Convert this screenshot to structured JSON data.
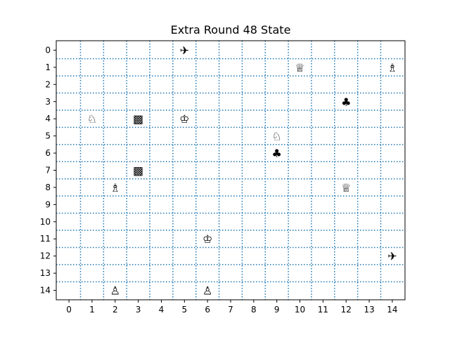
{
  "title": "Extra Round 48 State",
  "board": {
    "cols": 15,
    "rows": 15,
    "x_ticks": [
      "0",
      "1",
      "2",
      "3",
      "4",
      "5",
      "6",
      "7",
      "8",
      "9",
      "10",
      "11",
      "12",
      "13",
      "14"
    ],
    "y_ticks": [
      "0",
      "1",
      "2",
      "3",
      "4",
      "5",
      "6",
      "7",
      "8",
      "9",
      "10",
      "11",
      "12",
      "13",
      "14"
    ],
    "grid_style": "dotted",
    "grid_color": "#1f77b4"
  },
  "pieces": [
    {
      "col": 5,
      "row": 0,
      "glyph": "✈",
      "name": "airplane-icon"
    },
    {
      "col": 10,
      "row": 1,
      "glyph": "♕",
      "name": "white-queen-icon"
    },
    {
      "col": 14,
      "row": 1,
      "glyph": "♗",
      "name": "white-bishop-icon"
    },
    {
      "col": 12,
      "row": 3,
      "glyph": "♣",
      "name": "club-icon"
    },
    {
      "col": 1,
      "row": 4,
      "glyph": "♘",
      "name": "white-knight-icon"
    },
    {
      "col": 3,
      "row": 4,
      "glyph": "▩",
      "name": "checkered-block-icon"
    },
    {
      "col": 5,
      "row": 4,
      "glyph": "♔",
      "name": "white-king-icon"
    },
    {
      "col": 9,
      "row": 5,
      "glyph": "♘",
      "name": "white-knight-icon"
    },
    {
      "col": 9,
      "row": 6,
      "glyph": "♣",
      "name": "club-icon"
    },
    {
      "col": 3,
      "row": 7,
      "glyph": "▩",
      "name": "checkered-block-icon"
    },
    {
      "col": 2,
      "row": 8,
      "glyph": "♗",
      "name": "white-bishop-icon"
    },
    {
      "col": 12,
      "row": 8,
      "glyph": "♕",
      "name": "white-queen-icon"
    },
    {
      "col": 6,
      "row": 11,
      "glyph": "♔",
      "name": "white-king-icon"
    },
    {
      "col": 14,
      "row": 12,
      "glyph": "✈",
      "name": "airplane-icon"
    },
    {
      "col": 2,
      "row": 14,
      "glyph": "♙",
      "name": "white-pawn-icon"
    },
    {
      "col": 6,
      "row": 14,
      "glyph": "♙",
      "name": "white-pawn-icon"
    }
  ]
}
